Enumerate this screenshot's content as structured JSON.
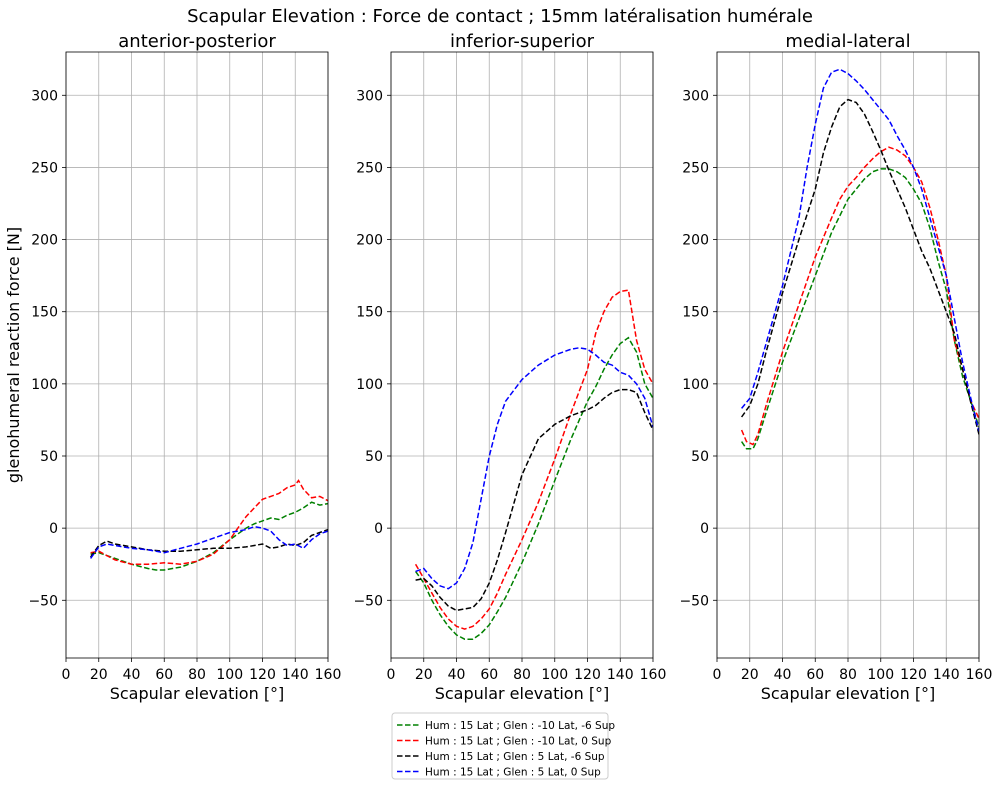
{
  "chart_data": {
    "type": "line",
    "title": "Scapular Elevation : Force de contact ; 15mm latéralisation humérale",
    "ylabel": "glenohumeral reaction force [N]",
    "xlabel": "Scapular elevation [°]",
    "xlim": [
      0,
      160
    ],
    "ylim": [
      -90,
      330
    ],
    "xticks": [
      0,
      20,
      40,
      60,
      80,
      100,
      120,
      140,
      160
    ],
    "yticks": [
      -50,
      0,
      50,
      100,
      150,
      200,
      250,
      300
    ],
    "grid": true,
    "legend_position": "bottom-center",
    "legend": [
      {
        "label": "Hum : 15 Lat ; Glen : -10 Lat, -6 Sup",
        "color": "#008000"
      },
      {
        "label": "Hum : 15 Lat ; Glen : -10 Lat, 0 Sup",
        "color": "#ff0000"
      },
      {
        "label": "Hum : 15 Lat ; Glen : 5 Lat, -6 Sup",
        "color": "#000000"
      },
      {
        "label": "Hum : 15 Lat ; Glen : 5 Lat, 0 Sup",
        "color": "#0000ff"
      }
    ],
    "panels": [
      {
        "title": "anterior-posterior",
        "series": [
          {
            "color": "#008000",
            "x": [
              15,
              20,
              25,
              30,
              40,
              50,
              55,
              60,
              65,
              70,
              80,
              90,
              100,
              105,
              110,
              115,
              120,
              125,
              130,
              135,
              140,
              145,
              150,
              155,
              160
            ],
            "y": [
              -18,
              -17,
              -19,
              -21,
              -25,
              -28,
              -29,
              -29,
              -28,
              -27,
              -23,
              -17,
              -8,
              -4,
              0,
              3,
              5,
              7,
              6,
              9,
              11,
              14,
              18,
              16,
              17
            ]
          },
          {
            "color": "#ff0000",
            "x": [
              15,
              20,
              25,
              30,
              40,
              50,
              60,
              70,
              80,
              90,
              100,
              105,
              110,
              115,
              120,
              125,
              130,
              135,
              140,
              142,
              145,
              150,
              155,
              160
            ],
            "y": [
              -17,
              -16,
              -19,
              -22,
              -25,
              -25,
              -24,
              -25,
              -23,
              -18,
              -8,
              0,
              8,
              14,
              20,
              22,
              24,
              28,
              30,
              33,
              27,
              21,
              22,
              19
            ]
          },
          {
            "color": "#000000",
            "x": [
              15,
              20,
              25,
              30,
              40,
              50,
              60,
              70,
              80,
              90,
              100,
              110,
              115,
              120,
              125,
              130,
              135,
              140,
              145,
              150,
              155,
              160
            ],
            "y": [
              -20,
              -12,
              -9,
              -11,
              -13,
              -15,
              -16,
              -16,
              -15,
              -14,
              -14,
              -13,
              -12,
              -11,
              -14,
              -13,
              -11,
              -12,
              -10,
              -5,
              -3,
              -1
            ]
          },
          {
            "color": "#0000ff",
            "x": [
              15,
              20,
              25,
              30,
              40,
              50,
              60,
              70,
              80,
              90,
              100,
              110,
              115,
              120,
              125,
              130,
              135,
              140,
              145,
              150,
              155,
              160
            ],
            "y": [
              -21,
              -13,
              -11,
              -12,
              -14,
              -15,
              -17,
              -14,
              -11,
              -7,
              -3,
              -1,
              1,
              0,
              -2,
              -8,
              -12,
              -11,
              -14,
              -8,
              -4,
              -2
            ]
          }
        ]
      },
      {
        "title": "inferior-superior",
        "series": [
          {
            "color": "#008000",
            "x": [
              15,
              20,
              25,
              30,
              35,
              40,
              45,
              50,
              55,
              60,
              65,
              70,
              80,
              90,
              100,
              110,
              120,
              125,
              130,
              135,
              140,
              145,
              150,
              155,
              160
            ],
            "y": [
              -30,
              -38,
              -50,
              -60,
              -68,
              -74,
              -77,
              -77,
              -73,
              -67,
              -58,
              -48,
              -24,
              3,
              33,
              62,
              88,
              98,
              110,
              120,
              128,
              132,
              122,
              100,
              90
            ]
          },
          {
            "color": "#ff0000",
            "x": [
              15,
              20,
              25,
              30,
              35,
              40,
              45,
              50,
              55,
              60,
              65,
              70,
              80,
              90,
              100,
              110,
              120,
              125,
              130,
              135,
              140,
              145,
              150,
              155,
              160
            ],
            "y": [
              -25,
              -35,
              -45,
              -55,
              -63,
              -68,
              -70,
              -68,
              -63,
              -56,
              -45,
              -32,
              -8,
              18,
              48,
              80,
              110,
              135,
              150,
              160,
              164,
              165,
              130,
              110,
              100
            ]
          },
          {
            "color": "#000000",
            "x": [
              15,
              20,
              25,
              30,
              35,
              40,
              45,
              50,
              55,
              60,
              65,
              70,
              80,
              90,
              100,
              110,
              120,
              125,
              130,
              135,
              140,
              145,
              150,
              155,
              160
            ],
            "y": [
              -36,
              -35,
              -40,
              -48,
              -54,
              -57,
              -56,
              -55,
              -49,
              -38,
              -22,
              -3,
              37,
              62,
              72,
              78,
              82,
              85,
              90,
              94,
              96,
              96,
              94,
              80,
              68
            ]
          },
          {
            "color": "#0000ff",
            "x": [
              15,
              20,
              25,
              30,
              35,
              40,
              45,
              50,
              55,
              60,
              65,
              70,
              80,
              90,
              100,
              110,
              115,
              120,
              125,
              130,
              135,
              140,
              145,
              150,
              155,
              160
            ],
            "y": [
              -30,
              -28,
              -35,
              -40,
              -42,
              -38,
              -28,
              -10,
              20,
              50,
              72,
              88,
              103,
              113,
              120,
              124,
              125,
              124,
              120,
              115,
              113,
              108,
              106,
              100,
              90,
              70
            ]
          }
        ]
      },
      {
        "title": "medial-lateral",
        "series": [
          {
            "color": "#008000",
            "x": [
              15,
              18,
              22,
              25,
              30,
              40,
              50,
              60,
              70,
              80,
              90,
              95,
              100,
              105,
              110,
              115,
              120,
              125,
              130,
              135,
              140,
              145,
              150,
              155,
              160
            ],
            "y": [
              60,
              55,
              55,
              62,
              80,
              115,
              145,
              175,
              205,
              228,
              242,
              247,
              249,
              249,
              247,
              243,
              235,
              225,
              208,
              185,
              165,
              130,
              105,
              88,
              70
            ]
          },
          {
            "color": "#ff0000",
            "x": [
              15,
              18,
              22,
              25,
              30,
              40,
              50,
              60,
              70,
              75,
              80,
              85,
              90,
              95,
              100,
              105,
              110,
              115,
              120,
              125,
              130,
              135,
              140,
              145,
              150,
              155,
              160
            ],
            "y": [
              68,
              60,
              58,
              65,
              85,
              122,
              155,
              188,
              215,
              228,
              237,
              243,
              250,
              256,
              261,
              264,
              262,
              258,
              250,
              240,
              222,
              200,
              175,
              130,
              110,
              88,
              76
            ]
          },
          {
            "color": "#000000",
            "x": [
              15,
              20,
              25,
              30,
              40,
              50,
              60,
              65,
              70,
              75,
              80,
              85,
              90,
              95,
              100,
              105,
              110,
              115,
              120,
              125,
              130,
              135,
              140,
              145,
              150,
              155,
              160
            ],
            "y": [
              77,
              85,
              100,
              122,
              163,
              200,
              235,
              260,
              278,
              292,
              297,
              295,
              287,
              275,
              262,
              248,
              235,
              222,
              207,
              192,
              180,
              165,
              150,
              135,
              110,
              87,
              65
            ]
          },
          {
            "color": "#0000ff",
            "x": [
              15,
              20,
              25,
              30,
              40,
              50,
              55,
              60,
              65,
              70,
              75,
              80,
              85,
              90,
              95,
              100,
              105,
              110,
              115,
              120,
              125,
              130,
              135,
              140,
              145,
              150,
              155,
              160
            ],
            "y": [
              83,
              90,
              108,
              128,
              168,
              215,
              250,
              280,
              305,
              316,
              318,
              315,
              310,
              304,
              297,
              290,
              283,
              272,
              262,
              250,
              235,
              215,
              195,
              175,
              145,
              115,
              90,
              67
            ]
          }
        ]
      }
    ]
  }
}
